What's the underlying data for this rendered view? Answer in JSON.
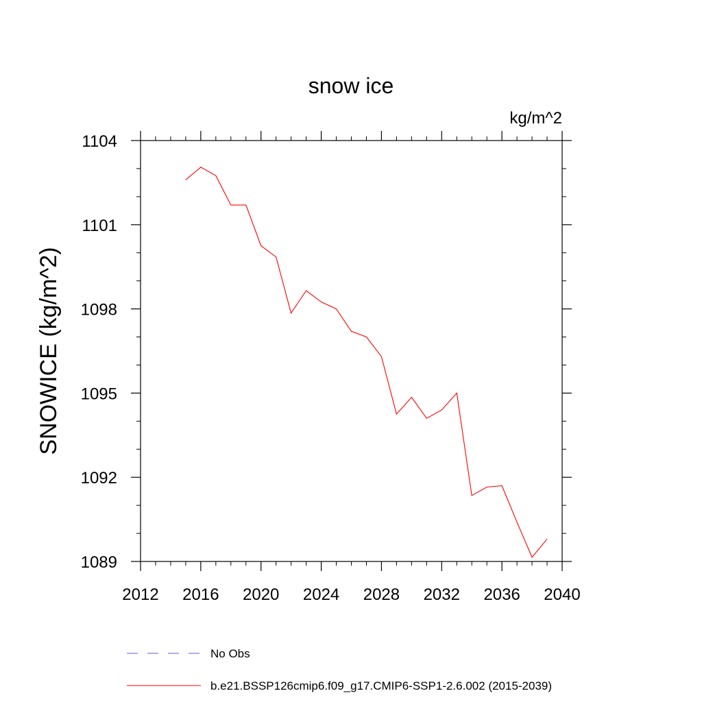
{
  "chart_data": {
    "type": "line",
    "title": "snow ice",
    "units_label": "kg/m^2",
    "ylabel": "SNOWICE  (kg/m^2)",
    "xlabel": "",
    "xlim": [
      2012,
      2040
    ],
    "ylim": [
      1089,
      1104
    ],
    "x_ticks": [
      2012,
      2016,
      2020,
      2024,
      2028,
      2032,
      2036,
      2040
    ],
    "x_tick_labels": [
      "2012",
      "2016",
      "2020",
      "2024",
      "2028",
      "2032",
      "2036",
      "2040"
    ],
    "x_minor_step": 1,
    "y_ticks": [
      1089,
      1092,
      1095,
      1098,
      1101,
      1104
    ],
    "y_tick_labels": [
      "1089",
      "1092",
      "1095",
      "1098",
      "1101",
      "1104"
    ],
    "y_minor_step": 1,
    "grid": false,
    "legend_position": "bottom",
    "series": [
      {
        "name": "b.e21.BSSP126cmip6.f09_g17.CMIP6-SSP1-2.6.002 (2015-2039)",
        "color": "#ff0000",
        "dash": "solid",
        "x": [
          2015,
          2016,
          2017,
          2018,
          2019,
          2020,
          2021,
          2022,
          2023,
          2024,
          2025,
          2026,
          2027,
          2028,
          2029,
          2030,
          2031,
          2032,
          2033,
          2034,
          2035,
          2036,
          2037,
          2038,
          2039
        ],
        "y": [
          1102.6,
          1103.05,
          1102.75,
          1101.7,
          1101.7,
          1100.25,
          1099.85,
          1097.85,
          1098.65,
          1098.25,
          1098.0,
          1097.2,
          1097.0,
          1096.3,
          1094.25,
          1094.85,
          1094.1,
          1094.4,
          1095.0,
          1091.35,
          1091.65,
          1091.7,
          1090.4,
          1089.15,
          1089.8
        ]
      }
    ],
    "legend": [
      {
        "label": "No Obs",
        "color": "#6a5acd",
        "dash": "dashed"
      },
      {
        "label": "b.e21.BSSP126cmip6.f09_g17.CMIP6-SSP1-2.6.002 (2015-2039)",
        "color": "#ff0000",
        "dash": "solid"
      }
    ]
  }
}
